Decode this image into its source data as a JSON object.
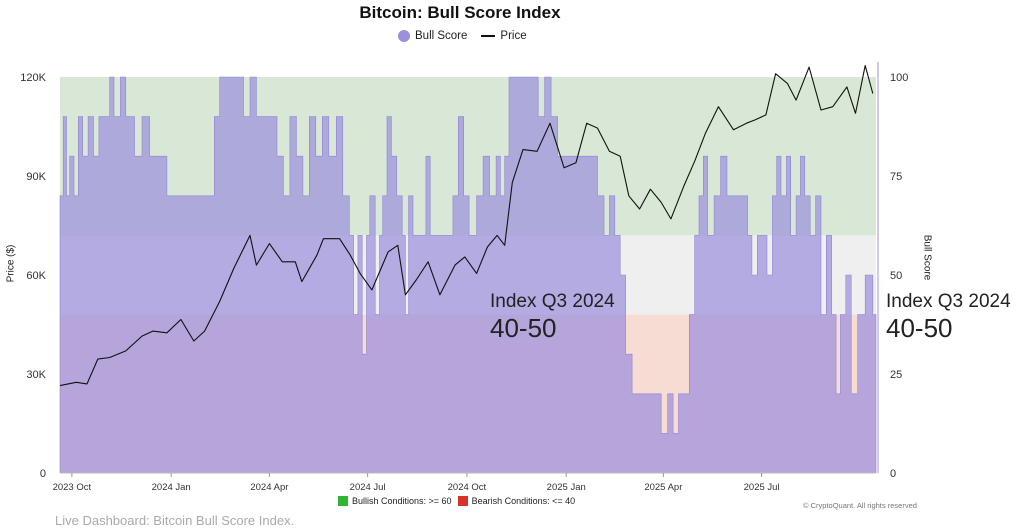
{
  "chart_data": {
    "type": "area",
    "title": "Bitcoin: Bull Score Index",
    "legend": [
      "Bull Score",
      "Price"
    ],
    "ylabel_left": "Price ($)",
    "ylabel_right": "Bull Score",
    "x_ticks": [
      "2023 Oct",
      "2024 Jan",
      "2024 Apr",
      "2024 Jul",
      "2024 Oct",
      "2025 Jan",
      "2025 Apr",
      "2025 Jul"
    ],
    "x_tick_dates": [
      "2023-10-01",
      "2024-01-01",
      "2024-04-01",
      "2024-07-01",
      "2024-10-01",
      "2025-01-01",
      "2025-04-01",
      "2025-07-01"
    ],
    "x_range": [
      "2023-09-20",
      "2025-10-15"
    ],
    "y_left_ticks": [
      "0",
      "30K",
      "60K",
      "90K",
      "120K"
    ],
    "y_left_range": [
      0,
      120000
    ],
    "y_right_ticks": [
      "0",
      "25",
      "50",
      "75",
      "100"
    ],
    "y_right_range": [
      0,
      100
    ],
    "zones": [
      {
        "name": "bullish",
        "from": 60,
        "to": 100,
        "color": "#d9e8d6"
      },
      {
        "name": "neutral",
        "from": 40,
        "to": 60,
        "color": "#efefef"
      },
      {
        "name": "bearish",
        "from": 0,
        "to": 40,
        "color": "#f6dcd3"
      }
    ],
    "colors": {
      "bull_score": "#9b90dd",
      "price": "#111111"
    },
    "series": [
      {
        "name": "Bull Score",
        "axis": "right",
        "points": [
          [
            "2023-09-20",
            70
          ],
          [
            "2023-09-23",
            90
          ],
          [
            "2023-09-26",
            70
          ],
          [
            "2023-09-29",
            80
          ],
          [
            "2023-10-03",
            70
          ],
          [
            "2023-10-07",
            90
          ],
          [
            "2023-10-11",
            80
          ],
          [
            "2023-10-16",
            90
          ],
          [
            "2023-10-21",
            80
          ],
          [
            "2023-10-26",
            90
          ],
          [
            "2023-11-01",
            90
          ],
          [
            "2023-11-05",
            100
          ],
          [
            "2023-11-09",
            90
          ],
          [
            "2023-11-15",
            100
          ],
          [
            "2023-11-20",
            90
          ],
          [
            "2023-11-28",
            80
          ],
          [
            "2023-12-05",
            90
          ],
          [
            "2023-12-12",
            80
          ],
          [
            "2023-12-20",
            80
          ],
          [
            "2023-12-28",
            70
          ],
          [
            "2024-01-05",
            70
          ],
          [
            "2024-01-15",
            70
          ],
          [
            "2024-01-25",
            70
          ],
          [
            "2024-02-05",
            70
          ],
          [
            "2024-02-10",
            90
          ],
          [
            "2024-02-15",
            100
          ],
          [
            "2024-02-22",
            100
          ],
          [
            "2024-03-01",
            100
          ],
          [
            "2024-03-08",
            90
          ],
          [
            "2024-03-14",
            100
          ],
          [
            "2024-03-20",
            90
          ],
          [
            "2024-03-28",
            90
          ],
          [
            "2024-04-03",
            90
          ],
          [
            "2024-04-08",
            80
          ],
          [
            "2024-04-14",
            70
          ],
          [
            "2024-04-20",
            90
          ],
          [
            "2024-04-26",
            80
          ],
          [
            "2024-05-02",
            70
          ],
          [
            "2024-05-08",
            90
          ],
          [
            "2024-05-14",
            80
          ],
          [
            "2024-05-20",
            90
          ],
          [
            "2024-05-26",
            80
          ],
          [
            "2024-06-02",
            90
          ],
          [
            "2024-06-08",
            70
          ],
          [
            "2024-06-14",
            60
          ],
          [
            "2024-06-18",
            40
          ],
          [
            "2024-06-22",
            60
          ],
          [
            "2024-06-26",
            30
          ],
          [
            "2024-06-30",
            60
          ],
          [
            "2024-07-03",
            70
          ],
          [
            "2024-07-08",
            40
          ],
          [
            "2024-07-12",
            60
          ],
          [
            "2024-07-15",
            70
          ],
          [
            "2024-07-19",
            90
          ],
          [
            "2024-07-23",
            80
          ],
          [
            "2024-07-28",
            70
          ],
          [
            "2024-08-02",
            60
          ],
          [
            "2024-08-05",
            40
          ],
          [
            "2024-08-08",
            70
          ],
          [
            "2024-08-12",
            60
          ],
          [
            "2024-08-18",
            60
          ],
          [
            "2024-08-24",
            80
          ],
          [
            "2024-08-28",
            60
          ],
          [
            "2024-09-04",
            60
          ],
          [
            "2024-09-12",
            60
          ],
          [
            "2024-09-18",
            70
          ],
          [
            "2024-09-23",
            90
          ],
          [
            "2024-09-28",
            70
          ],
          [
            "2024-10-03",
            60
          ],
          [
            "2024-10-10",
            70
          ],
          [
            "2024-10-16",
            80
          ],
          [
            "2024-10-22",
            70
          ],
          [
            "2024-10-28",
            80
          ],
          [
            "2024-11-01",
            70
          ],
          [
            "2024-11-05",
            80
          ],
          [
            "2024-11-09",
            100
          ],
          [
            "2024-11-15",
            100
          ],
          [
            "2024-11-22",
            100
          ],
          [
            "2024-11-30",
            100
          ],
          [
            "2024-12-06",
            90
          ],
          [
            "2024-12-12",
            100
          ],
          [
            "2024-12-18",
            90
          ],
          [
            "2024-12-24",
            80
          ],
          [
            "2024-12-30",
            80
          ],
          [
            "2025-01-06",
            80
          ],
          [
            "2025-01-14",
            80
          ],
          [
            "2025-01-22",
            80
          ],
          [
            "2025-01-30",
            70
          ],
          [
            "2025-02-05",
            60
          ],
          [
            "2025-02-10",
            70
          ],
          [
            "2025-02-15",
            60
          ],
          [
            "2025-02-20",
            50
          ],
          [
            "2025-02-25",
            30
          ],
          [
            "2025-03-03",
            20
          ],
          [
            "2025-03-10",
            20
          ],
          [
            "2025-03-17",
            20
          ],
          [
            "2025-03-24",
            20
          ],
          [
            "2025-03-30",
            10
          ],
          [
            "2025-04-05",
            20
          ],
          [
            "2025-04-10",
            10
          ],
          [
            "2025-04-15",
            20
          ],
          [
            "2025-04-20",
            20
          ],
          [
            "2025-04-25",
            40
          ],
          [
            "2025-04-30",
            60
          ],
          [
            "2025-05-04",
            70
          ],
          [
            "2025-05-08",
            80
          ],
          [
            "2025-05-12",
            60
          ],
          [
            "2025-05-18",
            70
          ],
          [
            "2025-05-24",
            80
          ],
          [
            "2025-05-30",
            70
          ],
          [
            "2025-06-06",
            70
          ],
          [
            "2025-06-12",
            70
          ],
          [
            "2025-06-18",
            60
          ],
          [
            "2025-06-22",
            50
          ],
          [
            "2025-06-27",
            60
          ],
          [
            "2025-07-02",
            60
          ],
          [
            "2025-07-06",
            50
          ],
          [
            "2025-07-11",
            70
          ],
          [
            "2025-07-15",
            80
          ],
          [
            "2025-07-19",
            70
          ],
          [
            "2025-07-24",
            80
          ],
          [
            "2025-07-28",
            60
          ],
          [
            "2025-08-02",
            70
          ],
          [
            "2025-08-06",
            80
          ],
          [
            "2025-08-10",
            70
          ],
          [
            "2025-08-15",
            60
          ],
          [
            "2025-08-20",
            70
          ],
          [
            "2025-08-25",
            40
          ],
          [
            "2025-08-30",
            60
          ],
          [
            "2025-09-04",
            40
          ],
          [
            "2025-09-08",
            20
          ],
          [
            "2025-09-12",
            40
          ],
          [
            "2025-09-17",
            50
          ],
          [
            "2025-09-22",
            20
          ],
          [
            "2025-09-28",
            40
          ],
          [
            "2025-10-05",
            50
          ],
          [
            "2025-10-12",
            40
          ]
        ]
      },
      {
        "name": "Price",
        "axis": "left",
        "points": [
          [
            "2023-09-20",
            26500
          ],
          [
            "2023-10-05",
            27500
          ],
          [
            "2023-10-15",
            27000
          ],
          [
            "2023-10-25",
            34500
          ],
          [
            "2023-11-05",
            35000
          ],
          [
            "2023-11-20",
            37000
          ],
          [
            "2023-12-05",
            41500
          ],
          [
            "2023-12-15",
            43000
          ],
          [
            "2023-12-28",
            42500
          ],
          [
            "2024-01-10",
            46500
          ],
          [
            "2024-01-22",
            40000
          ],
          [
            "2024-02-01",
            43000
          ],
          [
            "2024-02-15",
            52000
          ],
          [
            "2024-02-28",
            62000
          ],
          [
            "2024-03-08",
            68000
          ],
          [
            "2024-03-14",
            72000
          ],
          [
            "2024-03-20",
            63000
          ],
          [
            "2024-04-01",
            69500
          ],
          [
            "2024-04-13",
            64000
          ],
          [
            "2024-04-25",
            64000
          ],
          [
            "2024-05-01",
            58000
          ],
          [
            "2024-05-15",
            66000
          ],
          [
            "2024-05-21",
            71000
          ],
          [
            "2024-06-05",
            71000
          ],
          [
            "2024-06-15",
            66000
          ],
          [
            "2024-06-24",
            60500
          ],
          [
            "2024-07-05",
            55500
          ],
          [
            "2024-07-20",
            67000
          ],
          [
            "2024-07-29",
            69000
          ],
          [
            "2024-08-05",
            54000
          ],
          [
            "2024-08-15",
            58500
          ],
          [
            "2024-08-26",
            64000
          ],
          [
            "2024-09-06",
            54000
          ],
          [
            "2024-09-20",
            63000
          ],
          [
            "2024-09-29",
            65500
          ],
          [
            "2024-10-10",
            60500
          ],
          [
            "2024-10-20",
            68500
          ],
          [
            "2024-10-29",
            72000
          ],
          [
            "2024-11-05",
            69000
          ],
          [
            "2024-11-12",
            88000
          ],
          [
            "2024-11-22",
            98000
          ],
          [
            "2024-12-05",
            97500
          ],
          [
            "2024-12-17",
            106000
          ],
          [
            "2024-12-30",
            92500
          ],
          [
            "2025-01-10",
            94000
          ],
          [
            "2025-01-20",
            106000
          ],
          [
            "2025-01-30",
            104500
          ],
          [
            "2025-02-10",
            97500
          ],
          [
            "2025-02-20",
            96000
          ],
          [
            "2025-02-28",
            84000
          ],
          [
            "2025-03-10",
            80000
          ],
          [
            "2025-03-20",
            86000
          ],
          [
            "2025-03-30",
            82000
          ],
          [
            "2025-04-08",
            77000
          ],
          [
            "2025-04-20",
            87000
          ],
          [
            "2025-04-30",
            94500
          ],
          [
            "2025-05-10",
            103000
          ],
          [
            "2025-05-22",
            111000
          ],
          [
            "2025-06-05",
            104000
          ],
          [
            "2025-06-17",
            106000
          ],
          [
            "2025-06-25",
            107000
          ],
          [
            "2025-07-05",
            108500
          ],
          [
            "2025-07-14",
            121000
          ],
          [
            "2025-07-25",
            118000
          ],
          [
            "2025-08-02",
            113000
          ],
          [
            "2025-08-14",
            123000
          ],
          [
            "2025-08-25",
            110000
          ],
          [
            "2025-09-05",
            111000
          ],
          [
            "2025-09-18",
            117000
          ],
          [
            "2025-09-26",
            109000
          ],
          [
            "2025-10-05",
            123500
          ],
          [
            "2025-10-12",
            115000
          ]
        ]
      }
    ],
    "annotations": [
      {
        "line1": "Index Q3 2024",
        "line2": "40-50"
      },
      {
        "line1": "Index Q3 2024",
        "line2": "40-50"
      }
    ]
  },
  "footer": {
    "bullish": "Bullish Conditions: >= 60",
    "bearish": "Bearish Conditions: <= 40",
    "bullish_color": "#2fb52f",
    "bearish_color": "#d9322a",
    "copyright": "© CryptoQuant. All rights reserved",
    "caption": "Live Dashboard: Bitcoin Bull Score Index."
  }
}
